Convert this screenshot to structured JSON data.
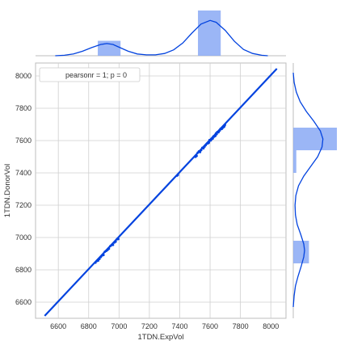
{
  "chart_data": {
    "type": "scatter",
    "subtype": "jointplot-regression",
    "xlabel": "1TDN.ExpVol",
    "ylabel": "1TDN.DonorVol",
    "xlim": [
      6450,
      8100
    ],
    "ylim": [
      6500,
      8080
    ],
    "xticks": [
      6600,
      6800,
      7000,
      7200,
      7400,
      7600,
      7800,
      8000
    ],
    "yticks": [
      6600,
      6800,
      7000,
      7200,
      7400,
      7600,
      7800,
      8000
    ],
    "grid": true,
    "legend": {
      "text": "pearsonr = 1; p = 0",
      "placement": "top-left"
    },
    "regression_line": {
      "x": [
        6510,
        8040
      ],
      "y": [
        6515,
        8045
      ]
    },
    "scatter_clusters": [
      {
        "x_range": [
          6840,
          7000
        ],
        "n": 18
      },
      {
        "x_range": [
          7380,
          7390
        ],
        "n": 2
      },
      {
        "x_range": [
          7500,
          7590
        ],
        "n": 12
      },
      {
        "x_range": [
          7590,
          7700
        ],
        "n": 26
      }
    ],
    "x_marginal": {
      "hist_bins": [
        {
          "x0": 6860,
          "x1": 7010,
          "height": 0.33
        },
        {
          "x0": 7520,
          "x1": 7670,
          "height": 1.0
        }
      ],
      "kde": [
        [
          6580,
          0.0
        ],
        [
          6640,
          0.01
        ],
        [
          6700,
          0.04
        ],
        [
          6760,
          0.1
        ],
        [
          6820,
          0.18
        ],
        [
          6880,
          0.25
        ],
        [
          6920,
          0.27
        ],
        [
          6960,
          0.25
        ],
        [
          7000,
          0.19
        ],
        [
          7060,
          0.1
        ],
        [
          7120,
          0.04
        ],
        [
          7180,
          0.02
        ],
        [
          7240,
          0.02
        ],
        [
          7300,
          0.05
        ],
        [
          7360,
          0.13
        ],
        [
          7420,
          0.28
        ],
        [
          7480,
          0.5
        ],
        [
          7540,
          0.7
        ],
        [
          7600,
          0.78
        ],
        [
          7640,
          0.74
        ],
        [
          7700,
          0.56
        ],
        [
          7760,
          0.32
        ],
        [
          7820,
          0.14
        ],
        [
          7880,
          0.05
        ],
        [
          7940,
          0.01
        ],
        [
          7980,
          0.0
        ]
      ]
    },
    "y_marginal": {
      "hist_bins": [
        {
          "y0": 7540,
          "y1": 7680,
          "width": 1.0
        },
        {
          "y0": 7400,
          "y1": 7540,
          "width": 0.07
        },
        {
          "y0": 6840,
          "y1": 6980,
          "width": 0.36
        }
      ],
      "kde": [
        [
          6570,
          0.0
        ],
        [
          6640,
          0.02
        ],
        [
          6700,
          0.05
        ],
        [
          6760,
          0.11
        ],
        [
          6820,
          0.18
        ],
        [
          6880,
          0.24
        ],
        [
          6920,
          0.26
        ],
        [
          6960,
          0.24
        ],
        [
          7020,
          0.17
        ],
        [
          7080,
          0.09
        ],
        [
          7140,
          0.05
        ],
        [
          7200,
          0.04
        ],
        [
          7260,
          0.06
        ],
        [
          7320,
          0.12
        ],
        [
          7380,
          0.24
        ],
        [
          7440,
          0.4
        ],
        [
          7500,
          0.56
        ],
        [
          7560,
          0.66
        ],
        [
          7610,
          0.68
        ],
        [
          7660,
          0.62
        ],
        [
          7720,
          0.47
        ],
        [
          7780,
          0.3
        ],
        [
          7840,
          0.16
        ],
        [
          7900,
          0.07
        ],
        [
          7960,
          0.02
        ],
        [
          8020,
          0.0
        ]
      ]
    },
    "colors": {
      "points": "#0343df",
      "line": "#0343df",
      "bars": "#8aa9f5",
      "kde": "#0343df",
      "grid": "#cfcfcf",
      "axis": "#bdbdbd"
    }
  }
}
